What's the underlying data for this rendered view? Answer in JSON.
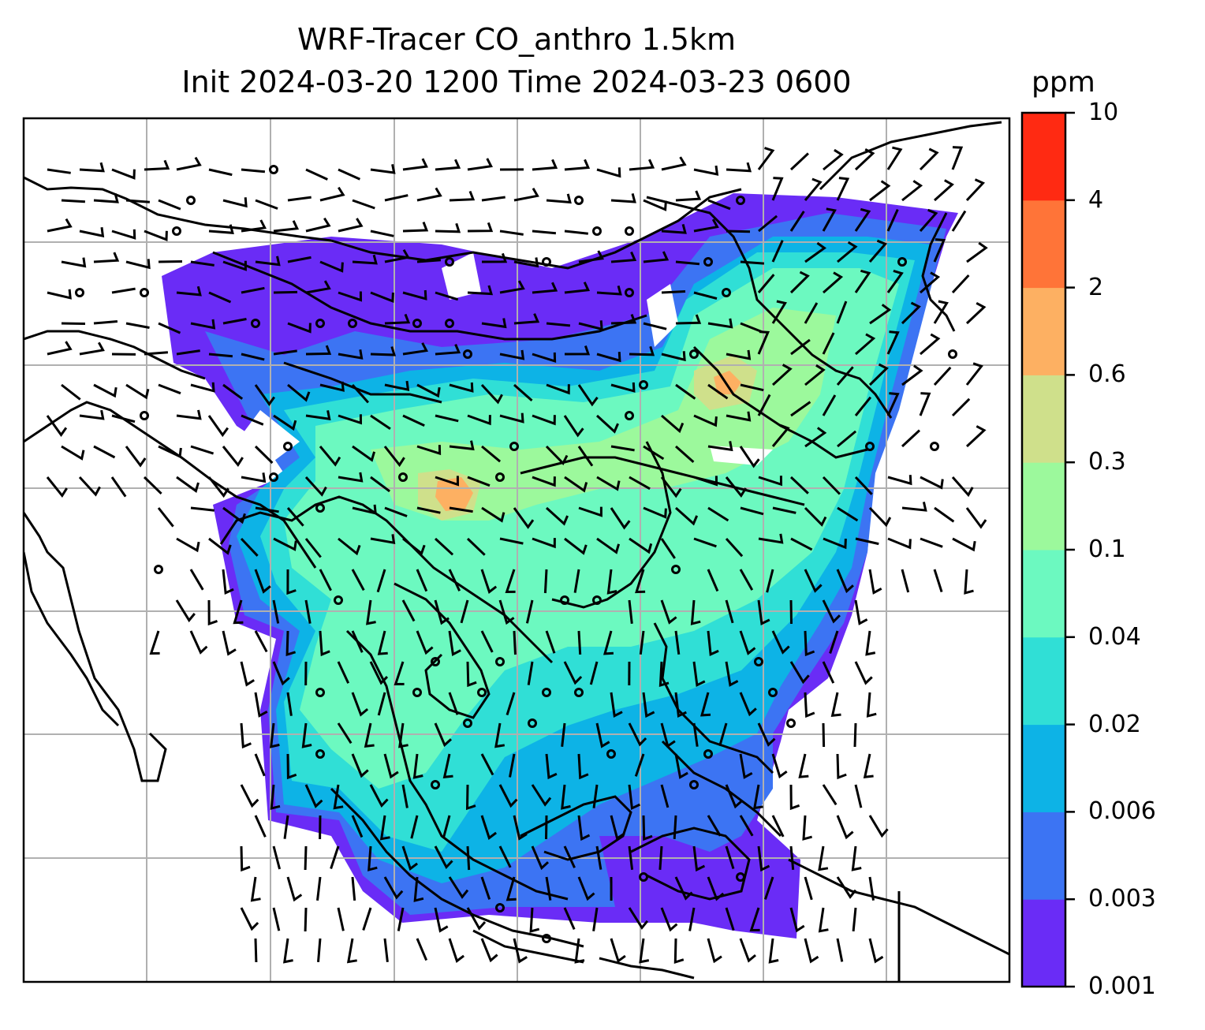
{
  "title": {
    "line1": "WRF-Tracer CO_anthro 1.5km",
    "line2": "Init 2024-03-20 1200 Time 2024-03-23 0600"
  },
  "colorbar": {
    "unit": "ppm",
    "levels": [
      "0.001",
      "0.003",
      "0.006",
      "0.02",
      "0.04",
      "0.1",
      "0.3",
      "0.6",
      "2",
      "4",
      "10"
    ],
    "colors": [
      "#6a2cf6",
      "#3c74f3",
      "#0db3e6",
      "#30dfd6",
      "#6cf9c0",
      "#9cf99c",
      "#cfe08b",
      "#fdb062",
      "#ff7438",
      "#ff2a12"
    ]
  },
  "map": {
    "land_border_color": "#000000",
    "gridline_color": "#b0b0b0",
    "wind_barb_color": "#000000"
  }
}
